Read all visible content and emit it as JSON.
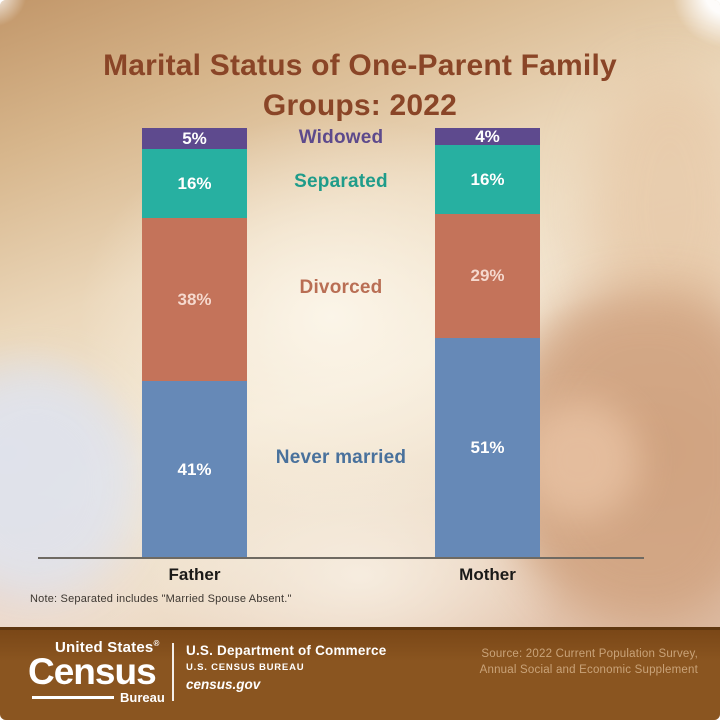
{
  "title": "Marital Status of One-Parent Family Groups: 2022",
  "note": "Note: Separated includes \"Married Spouse Absent.\"",
  "chart_data": {
    "type": "bar",
    "subtype": "stacked-vertical-percent",
    "title": "Marital Status of One-Parent Family Groups: 2022",
    "categories": [
      "Father",
      "Mother"
    ],
    "unit": "%",
    "ylim": [
      0,
      100
    ],
    "stack_order": "top-to-bottom",
    "legend_position": "between-bars",
    "series": [
      {
        "name": "Widowed",
        "values": [
          5,
          4
        ],
        "color": "#5e4a8e",
        "label_color": "#5d4a8c",
        "value_text_color": "#ffffff"
      },
      {
        "name": "Separated",
        "values": [
          16,
          16
        ],
        "color": "#27b0a1",
        "label_color": "#1f9c8a",
        "value_text_color": "#ffffff"
      },
      {
        "name": "Divorced",
        "values": [
          38,
          29
        ],
        "color": "#c4735a",
        "label_color": "#b96e54",
        "value_text_color": "#f6d8cd"
      },
      {
        "name": "Never married",
        "values": [
          41,
          51
        ],
        "color": "#6689b7",
        "label_color": "#49719c",
        "value_text_color": "#ffffff"
      }
    ]
  },
  "footer": {
    "logo": {
      "top": "United States",
      "registered": "®",
      "main": "Census",
      "sub": "Bureau"
    },
    "dept": "U.S. Department of Commerce",
    "bureau": "U.S. CENSUS BUREAU",
    "site": "census.gov",
    "source_line1": "Source: 2022 Current Population Survey,",
    "source_line2": "Annual Social and Economic Supplement"
  },
  "colors": {
    "title": "#8a4527",
    "axis_line": "#6f6a62",
    "footer_bg_top": "#7a4717",
    "footer_bg": "#8a5520",
    "footer_source_text": "#c9a379"
  }
}
